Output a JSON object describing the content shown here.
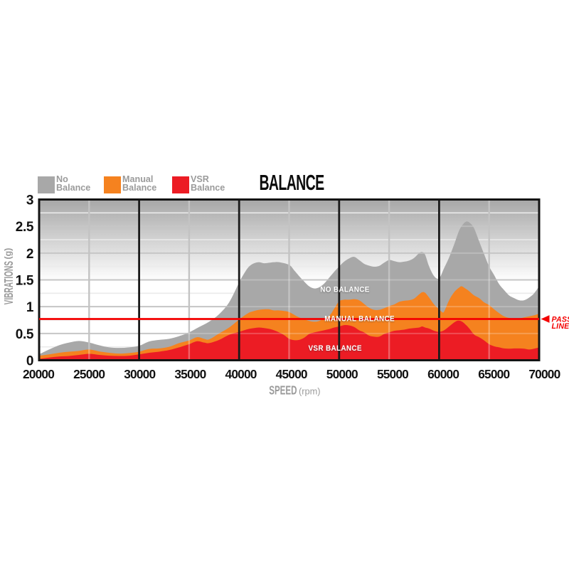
{
  "title": "BALANCE",
  "legend": {
    "items": [
      {
        "line1": "No",
        "line2": "Balance",
        "color": "#a8a8a8"
      },
      {
        "line1": "Manual",
        "line2": "Balance",
        "color": "#f5821f"
      },
      {
        "line1": "VSR",
        "line2": "Balance",
        "color": "#ec1c24"
      }
    ]
  },
  "axes": {
    "x_label": "SPEED",
    "x_unit": "(rpm)",
    "y_label": "VIBRATIONS",
    "y_unit": "(g)",
    "x_tick_labels": [
      "20000",
      "25000",
      "30000",
      "35000",
      "40000",
      "45000",
      "50000",
      "55000",
      "60000",
      "65000",
      "70000"
    ],
    "y_tick_labels": [
      "3",
      "2.5",
      "2",
      "1.5",
      "1",
      "0.5",
      "0"
    ]
  },
  "pass_line": {
    "label_line1": "PASS",
    "label_line2": "LINE",
    "value": 0.77,
    "color": "#f40000"
  },
  "area_labels": [
    {
      "text": "NO BALANCE",
      "rpm": 50580,
      "g": 1.33
    },
    {
      "text": "MANUAL BALANCE",
      "rpm": 52050,
      "g": 0.785
    },
    {
      "text": "VSR BALANCE",
      "rpm": 49600,
      "g": 0.235
    }
  ],
  "colors": {
    "no_balance": "#a8a8a8",
    "manual_balance": "#f5821f",
    "vsr_balance": "#ec1c24",
    "pass_line": "#f40000",
    "axis_text": "#111111",
    "muted_text": "#9b9b9b",
    "plot_border": "#141414",
    "bg_gradient_top": "#a7a7a7",
    "bg_gradient_bottom": "#ffffff"
  },
  "chart_data": {
    "type": "area",
    "title": "BALANCE",
    "xlabel": "SPEED (rpm)",
    "ylabel": "VIBRATIONS (g)",
    "xlim": [
      20000,
      70000
    ],
    "ylim": [
      0,
      3
    ],
    "x_major_gridlines": [
      30000,
      40000,
      50000,
      60000
    ],
    "x_minor_gridlines": [
      25000,
      35000,
      45000,
      55000,
      65000
    ],
    "y_gridline_step_major": 0.5,
    "y_gridline_step_minor": 0.25,
    "grid": "on",
    "legend_position": "top-left",
    "pass_line_value": 0.77,
    "series": [
      {
        "name": "No Balance",
        "color": "#a8a8a8",
        "points": [
          [
            20000,
            0.11
          ],
          [
            21000,
            0.2
          ],
          [
            22000,
            0.28
          ],
          [
            23000,
            0.33
          ],
          [
            24000,
            0.36
          ],
          [
            25000,
            0.33
          ],
          [
            26000,
            0.28
          ],
          [
            27000,
            0.24
          ],
          [
            28000,
            0.23
          ],
          [
            29000,
            0.24
          ],
          [
            30000,
            0.27
          ],
          [
            31000,
            0.35
          ],
          [
            32000,
            0.38
          ],
          [
            33000,
            0.4
          ],
          [
            34000,
            0.45
          ],
          [
            35000,
            0.52
          ],
          [
            36000,
            0.62
          ],
          [
            37000,
            0.72
          ],
          [
            38000,
            0.86
          ],
          [
            39000,
            1.08
          ],
          [
            40000,
            1.45
          ],
          [
            40500,
            1.62
          ],
          [
            41000,
            1.75
          ],
          [
            41500,
            1.81
          ],
          [
            42000,
            1.83
          ],
          [
            42500,
            1.81
          ],
          [
            43000,
            1.82
          ],
          [
            43500,
            1.83
          ],
          [
            44000,
            1.83
          ],
          [
            45000,
            1.78
          ],
          [
            45500,
            1.68
          ],
          [
            46000,
            1.57
          ],
          [
            46500,
            1.47
          ],
          [
            47000,
            1.38
          ],
          [
            47500,
            1.34
          ],
          [
            48000,
            1.36
          ],
          [
            48500,
            1.43
          ],
          [
            49000,
            1.54
          ],
          [
            49500,
            1.65
          ],
          [
            50000,
            1.75
          ],
          [
            50500,
            1.84
          ],
          [
            51000,
            1.9
          ],
          [
            51500,
            1.93
          ],
          [
            52000,
            1.87
          ],
          [
            52500,
            1.8
          ],
          [
            53000,
            1.765
          ],
          [
            53500,
            1.745
          ],
          [
            54000,
            1.76
          ],
          [
            54500,
            1.82
          ],
          [
            55000,
            1.87
          ],
          [
            55500,
            1.85
          ],
          [
            56000,
            1.83
          ],
          [
            56500,
            1.84
          ],
          [
            57000,
            1.86
          ],
          [
            57500,
            1.91
          ],
          [
            58000,
            2.0
          ],
          [
            58300,
            2.02
          ],
          [
            58600,
            1.97
          ],
          [
            59000,
            1.75
          ],
          [
            59500,
            1.57
          ],
          [
            60000,
            1.53
          ],
          [
            60500,
            1.72
          ],
          [
            61000,
            1.92
          ],
          [
            61500,
            2.16
          ],
          [
            62000,
            2.42
          ],
          [
            62450,
            2.55
          ],
          [
            62800,
            2.59
          ],
          [
            63150,
            2.55
          ],
          [
            63500,
            2.46
          ],
          [
            64000,
            2.22
          ],
          [
            64500,
            1.98
          ],
          [
            65000,
            1.75
          ],
          [
            65500,
            1.59
          ],
          [
            66000,
            1.42
          ],
          [
            66500,
            1.31
          ],
          [
            67000,
            1.21
          ],
          [
            67500,
            1.16
          ],
          [
            68000,
            1.12
          ],
          [
            68500,
            1.12
          ],
          [
            69000,
            1.17
          ],
          [
            69500,
            1.25
          ],
          [
            70000,
            1.38
          ]
        ]
      },
      {
        "name": "Manual Balance",
        "color": "#f5821f",
        "points": [
          [
            20000,
            0.085
          ],
          [
            21000,
            0.11
          ],
          [
            22000,
            0.14
          ],
          [
            23000,
            0.16
          ],
          [
            24000,
            0.175
          ],
          [
            25000,
            0.2
          ],
          [
            26000,
            0.165
          ],
          [
            27000,
            0.14
          ],
          [
            28000,
            0.125
          ],
          [
            29000,
            0.135
          ],
          [
            30000,
            0.16
          ],
          [
            31000,
            0.21
          ],
          [
            32000,
            0.22
          ],
          [
            33000,
            0.25
          ],
          [
            34000,
            0.32
          ],
          [
            35000,
            0.37
          ],
          [
            35800,
            0.43
          ],
          [
            36500,
            0.4
          ],
          [
            37000,
            0.39
          ],
          [
            38000,
            0.5
          ],
          [
            39000,
            0.61
          ],
          [
            40000,
            0.76
          ],
          [
            40500,
            0.83
          ],
          [
            41000,
            0.89
          ],
          [
            41500,
            0.92
          ],
          [
            42000,
            0.94
          ],
          [
            42500,
            0.95
          ],
          [
            43000,
            0.95
          ],
          [
            43500,
            0.93
          ],
          [
            44000,
            0.93
          ],
          [
            44500,
            0.92
          ],
          [
            45000,
            0.9
          ],
          [
            46000,
            0.8
          ],
          [
            47000,
            0.735
          ],
          [
            47500,
            0.72
          ],
          [
            48000,
            0.735
          ],
          [
            49000,
            0.83
          ],
          [
            49500,
            0.96
          ],
          [
            50000,
            1.1
          ],
          [
            50500,
            1.13
          ],
          [
            51000,
            1.13
          ],
          [
            51500,
            1.14
          ],
          [
            52000,
            1.12
          ],
          [
            52500,
            1.05
          ],
          [
            53000,
            0.98
          ],
          [
            53500,
            0.94
          ],
          [
            54000,
            0.94
          ],
          [
            54500,
            0.97
          ],
          [
            55000,
            1.01
          ],
          [
            55500,
            1.04
          ],
          [
            56000,
            1.09
          ],
          [
            56500,
            1.11
          ],
          [
            57000,
            1.12
          ],
          [
            57500,
            1.15
          ],
          [
            58000,
            1.23
          ],
          [
            58300,
            1.27
          ],
          [
            58600,
            1.26
          ],
          [
            59000,
            1.17
          ],
          [
            59500,
            1.04
          ],
          [
            60000,
            0.95
          ],
          [
            60300,
            0.9
          ],
          [
            60500,
            0.91
          ],
          [
            61000,
            1.12
          ],
          [
            61500,
            1.27
          ],
          [
            62000,
            1.355
          ],
          [
            62250,
            1.38
          ],
          [
            62650,
            1.335
          ],
          [
            63000,
            1.29
          ],
          [
            63500,
            1.21
          ],
          [
            64000,
            1.16
          ],
          [
            64500,
            1.08
          ],
          [
            65000,
            1.03
          ],
          [
            65500,
            0.95
          ],
          [
            66000,
            0.88
          ],
          [
            66500,
            0.82
          ],
          [
            67000,
            0.79
          ],
          [
            67500,
            0.78
          ],
          [
            68000,
            0.78
          ],
          [
            68500,
            0.8
          ],
          [
            69000,
            0.82
          ],
          [
            69500,
            0.84
          ],
          [
            70000,
            0.87
          ]
        ]
      },
      {
        "name": "VSR Balance",
        "color": "#ec1c24",
        "points": [
          [
            20000,
            0.025
          ],
          [
            21000,
            0.05
          ],
          [
            22000,
            0.07
          ],
          [
            23000,
            0.08
          ],
          [
            24000,
            0.1
          ],
          [
            25000,
            0.12
          ],
          [
            26000,
            0.1
          ],
          [
            27000,
            0.085
          ],
          [
            28000,
            0.08
          ],
          [
            29000,
            0.085
          ],
          [
            30000,
            0.11
          ],
          [
            31000,
            0.14
          ],
          [
            32000,
            0.16
          ],
          [
            33000,
            0.19
          ],
          [
            34000,
            0.24
          ],
          [
            35000,
            0.3
          ],
          [
            35800,
            0.355
          ],
          [
            36500,
            0.33
          ],
          [
            37000,
            0.32
          ],
          [
            38000,
            0.38
          ],
          [
            39000,
            0.475
          ],
          [
            40000,
            0.53
          ],
          [
            40500,
            0.56
          ],
          [
            41000,
            0.585
          ],
          [
            41500,
            0.6
          ],
          [
            42000,
            0.61
          ],
          [
            42500,
            0.6
          ],
          [
            43000,
            0.585
          ],
          [
            43500,
            0.56
          ],
          [
            44000,
            0.52
          ],
          [
            44500,
            0.47
          ],
          [
            45000,
            0.4
          ],
          [
            45500,
            0.375
          ],
          [
            46000,
            0.38
          ],
          [
            46500,
            0.42
          ],
          [
            47000,
            0.49
          ],
          [
            47500,
            0.52
          ],
          [
            48000,
            0.54
          ],
          [
            48500,
            0.56
          ],
          [
            49000,
            0.58
          ],
          [
            49500,
            0.61
          ],
          [
            50000,
            0.63
          ],
          [
            50500,
            0.655
          ],
          [
            51000,
            0.65
          ],
          [
            51500,
            0.62
          ],
          [
            52000,
            0.56
          ],
          [
            52500,
            0.52
          ],
          [
            53000,
            0.46
          ],
          [
            53500,
            0.44
          ],
          [
            54000,
            0.44
          ],
          [
            54500,
            0.49
          ],
          [
            55000,
            0.52
          ],
          [
            55500,
            0.55
          ],
          [
            56000,
            0.56
          ],
          [
            56500,
            0.57
          ],
          [
            57000,
            0.59
          ],
          [
            57500,
            0.6
          ],
          [
            58000,
            0.61
          ],
          [
            58300,
            0.63
          ],
          [
            58600,
            0.61
          ],
          [
            59000,
            0.59
          ],
          [
            59500,
            0.55
          ],
          [
            60000,
            0.53
          ],
          [
            60500,
            0.56
          ],
          [
            61000,
            0.63
          ],
          [
            61500,
            0.705
          ],
          [
            61900,
            0.74
          ],
          [
            62300,
            0.72
          ],
          [
            62700,
            0.655
          ],
          [
            63000,
            0.595
          ],
          [
            63500,
            0.48
          ],
          [
            64000,
            0.43
          ],
          [
            64500,
            0.37
          ],
          [
            65000,
            0.3
          ],
          [
            65500,
            0.26
          ],
          [
            66000,
            0.24
          ],
          [
            66500,
            0.22
          ],
          [
            67000,
            0.215
          ],
          [
            67500,
            0.22
          ],
          [
            68000,
            0.22
          ],
          [
            68500,
            0.215
          ],
          [
            69000,
            0.2
          ],
          [
            69500,
            0.215
          ],
          [
            70000,
            0.24
          ]
        ]
      }
    ]
  }
}
